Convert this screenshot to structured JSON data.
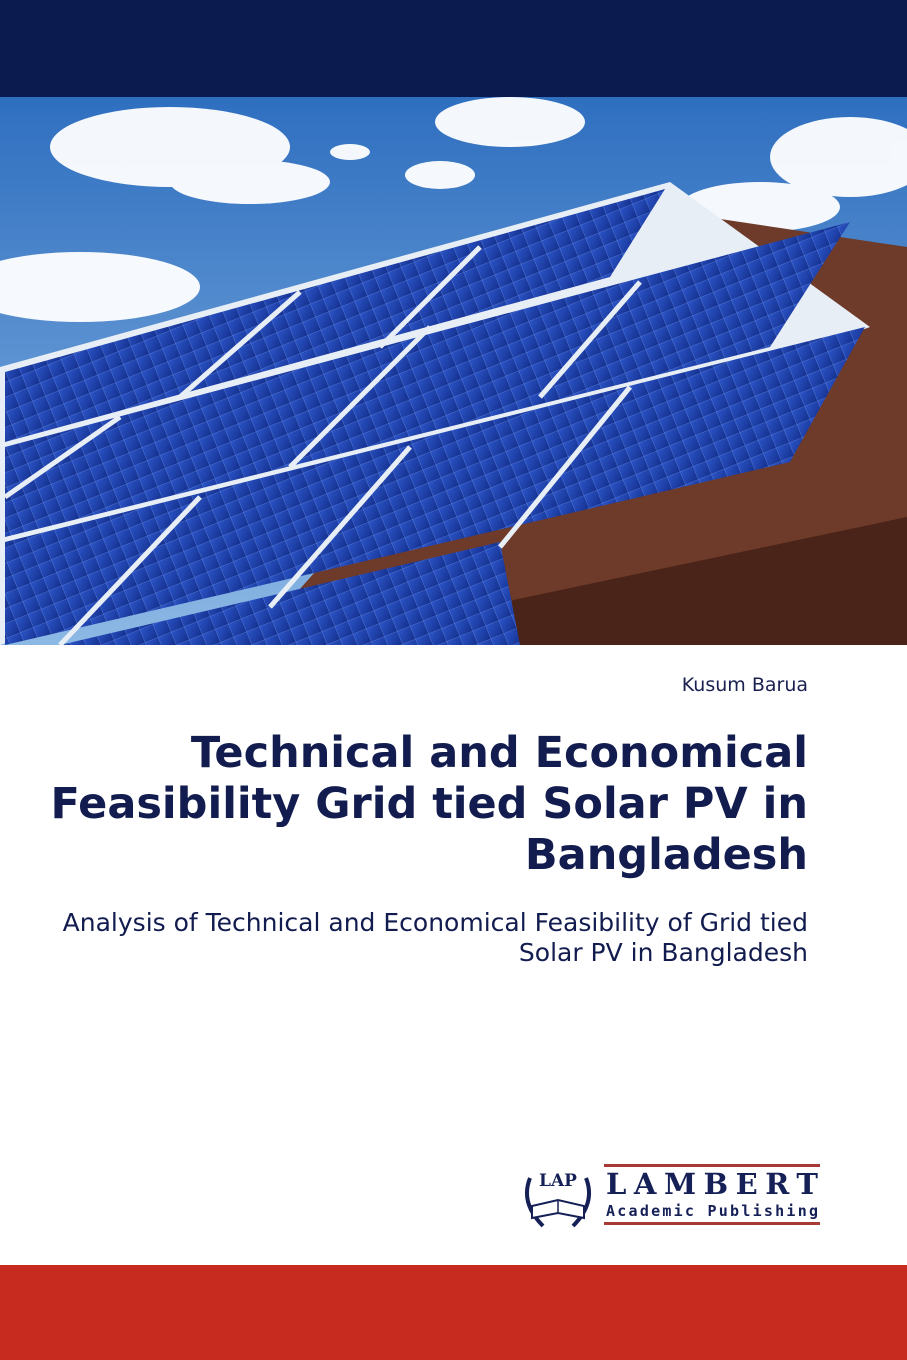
{
  "cover": {
    "author": "Kusum Barua",
    "title": "Technical and Economical Feasibility Grid tied Solar PV in Bangladesh",
    "subtitle": "Analysis of Technical and Economical Feasibility of Grid tied Solar PV in Bangladesh",
    "publisher": {
      "logo_mark": "LAP",
      "name": "LAMBERT",
      "tagline": "Academic Publishing"
    }
  },
  "colors": {
    "top_band": "#0b1b50",
    "bottom_band": "#c72a1f",
    "title_text": "#121c4e"
  }
}
